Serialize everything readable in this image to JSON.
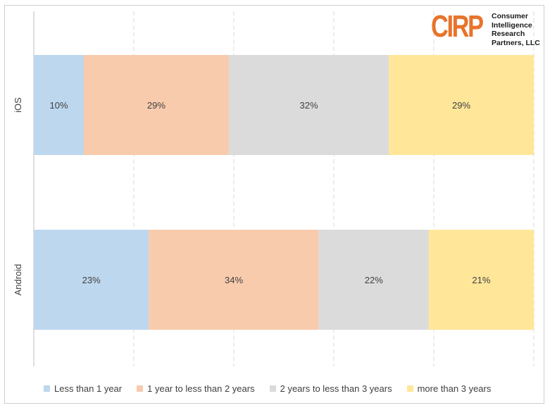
{
  "logo": {
    "mark": "CIRP",
    "lines": [
      "Consumer",
      "Intelligence",
      "Research",
      "Partners, LLC"
    ]
  },
  "chart_data": {
    "type": "bar",
    "orientation": "horizontal",
    "stacked": true,
    "categories": [
      "iOS",
      "Android"
    ],
    "series": [
      {
        "name": "Less than 1 year",
        "color": "#bdd7ee",
        "values": [
          10,
          23
        ],
        "labels": [
          "10%",
          "23%"
        ]
      },
      {
        "name": "1 year to less than 2 years",
        "color": "#f8cbad",
        "values": [
          29,
          34
        ],
        "labels": [
          "29%",
          "34%"
        ]
      },
      {
        "name": "2 years to less than 3 years",
        "color": "#dbdbdb",
        "values": [
          32,
          22
        ],
        "labels": [
          "32%",
          "22%"
        ]
      },
      {
        "name": "more than 3 years",
        "color": "#ffe699",
        "values": [
          29,
          21
        ],
        "labels": [
          "29%",
          "21%"
        ]
      }
    ],
    "xlim": [
      0,
      100
    ],
    "grid": "vertical-dashed",
    "legend_position": "bottom"
  }
}
